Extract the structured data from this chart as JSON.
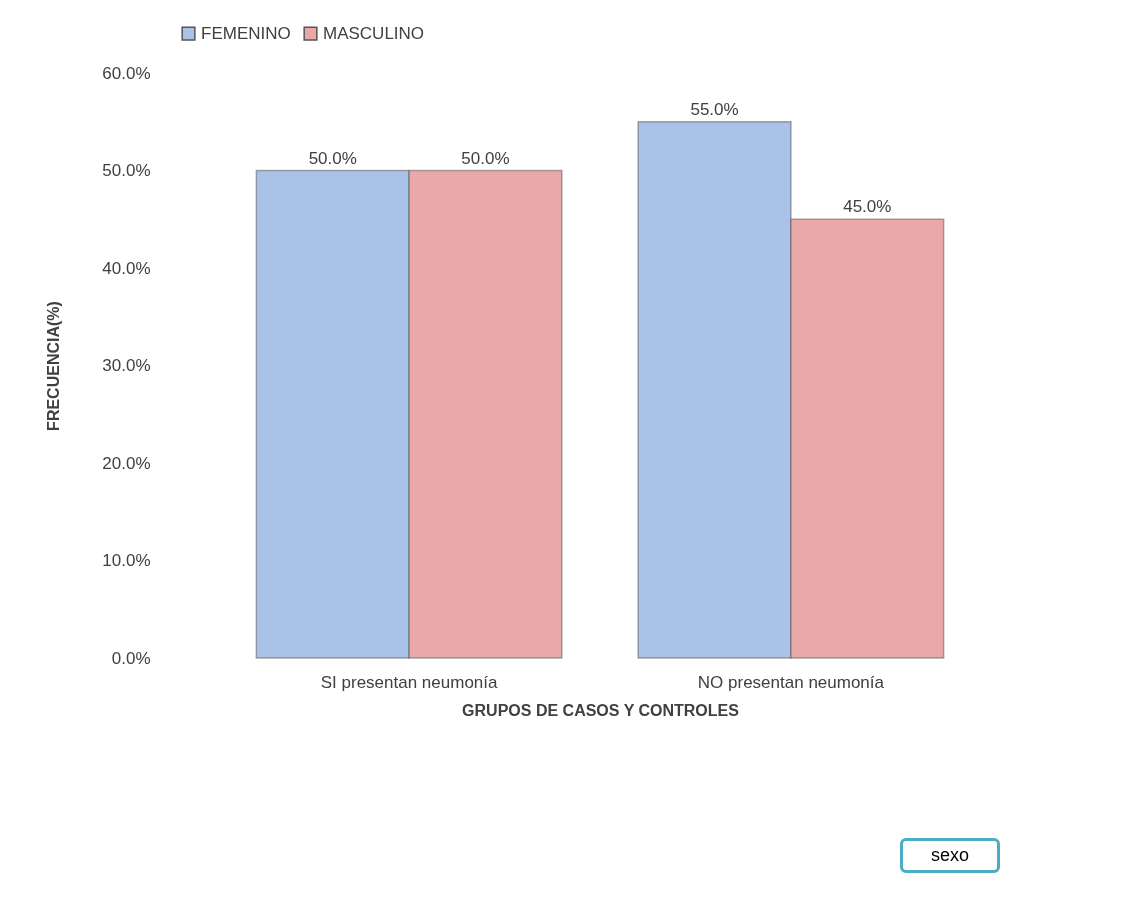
{
  "chart_data": {
    "type": "bar",
    "xlabel": "GRUPOS DE CASOS Y CONTROLES",
    "ylabel": "FRECUENCIA(%)",
    "categories": [
      "SI presentan neumonía",
      "NO presentan neumonía"
    ],
    "series": [
      {
        "name": "FEMENINO",
        "color": "#a9c2e6",
        "values": [
          50,
          55
        ],
        "value_labels": [
          "50.0%",
          "55.0%"
        ]
      },
      {
        "name": "MASCULINO",
        "color": "#eaa9a8",
        "values": [
          50,
          45
        ],
        "value_labels": [
          "50.0%",
          "45.0%"
        ]
      }
    ],
    "ylim": [
      0,
      60
    ],
    "yticks": [
      {
        "value": 0,
        "label": "0.0%"
      },
      {
        "value": 10,
        "label": "10.0%"
      },
      {
        "value": 20,
        "label": "20.0%"
      },
      {
        "value": 30,
        "label": "30.0%"
      },
      {
        "value": 40,
        "label": "40.0%"
      },
      {
        "value": 50,
        "label": "50.0%"
      },
      {
        "value": 60,
        "label": "60.0%"
      }
    ],
    "grid": false,
    "legend": "top",
    "annotations": [
      "sexo"
    ]
  }
}
